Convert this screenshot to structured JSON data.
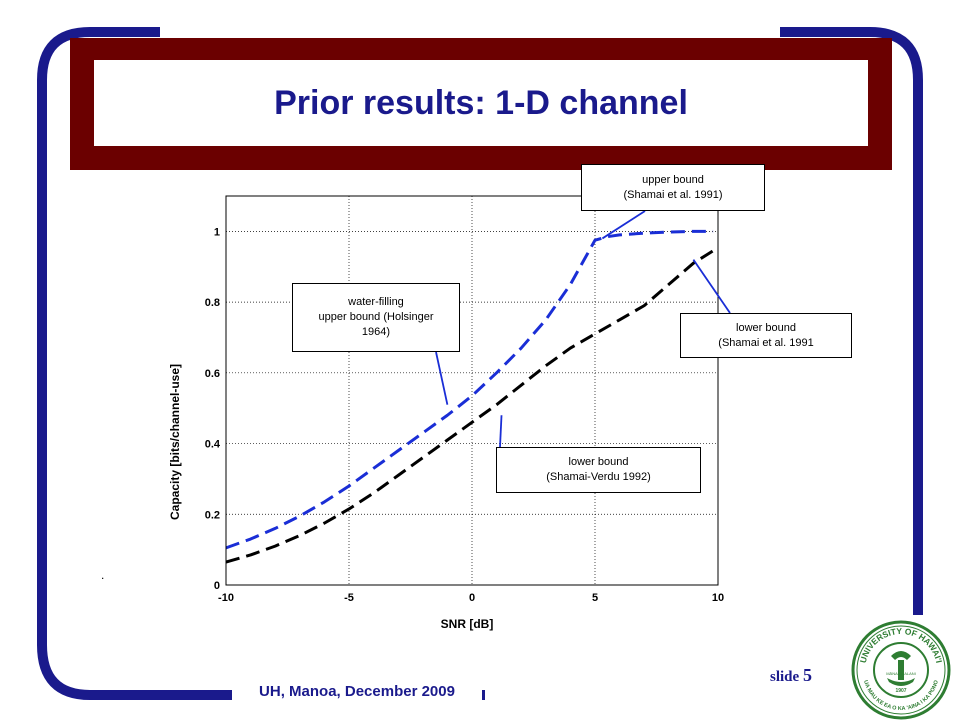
{
  "slide": {
    "title": "Prior results: 1-D channel",
    "footer": "UH, Manoa, December 2009",
    "slide_label": "slide",
    "slide_number": "5",
    "dot": "."
  },
  "logo": {
    "icon": "university-seal-icon",
    "text_top": "UNIVERSITY OF HAWAI'I",
    "text_bottom": "UA MAU KE EA O KA 'AINA I KA PONO",
    "text_center": "MĀNAIAKALANI",
    "year": "1907"
  },
  "colors": {
    "frame": "#1a1a8c",
    "title_border": "#6b0000",
    "blue_series": "#1a2ed6",
    "black_series": "#000000",
    "logo": "#2e7d32"
  },
  "chart_data": {
    "type": "line",
    "title": "",
    "xlabel": "SNR [dB]",
    "ylabel": "Capacity [bits/channel-use]",
    "xlim": [
      -10,
      10
    ],
    "ylim": [
      0,
      1.1
    ],
    "xticks": [
      -10,
      -5,
      0,
      5,
      10
    ],
    "xtick_labels": [
      "-10",
      "-5",
      "0",
      "5",
      "10"
    ],
    "yticks": [
      0,
      0.2,
      0.4,
      0.6,
      0.8,
      1
    ],
    "ytick_labels": [
      "0",
      "0.2",
      "0.4",
      "0.6",
      "0.8",
      "1"
    ],
    "grid": true,
    "series": [
      {
        "color": "#1a2ed6",
        "x": [
          -10,
          -9,
          -8,
          -7,
          -6,
          -5,
          -4,
          -3,
          -2,
          -1,
          0,
          1,
          2,
          3,
          4,
          5,
          5.5,
          6,
          7,
          8,
          9,
          9.8
        ],
        "y": [
          0.105,
          0.13,
          0.16,
          0.195,
          0.235,
          0.28,
          0.33,
          0.38,
          0.43,
          0.48,
          0.535,
          0.6,
          0.67,
          0.75,
          0.85,
          0.975,
          0.985,
          0.99,
          0.995,
          0.998,
          1.0,
          1.0
        ]
      },
      {
        "color": "#000000",
        "x": [
          -10,
          -9,
          -8,
          -7,
          -6,
          -5,
          -4,
          -3,
          -2,
          -1,
          0,
          1,
          2,
          3,
          4,
          5,
          6,
          7,
          8,
          9,
          9.8
        ],
        "y": [
          0.065,
          0.085,
          0.11,
          0.14,
          0.175,
          0.215,
          0.26,
          0.31,
          0.36,
          0.41,
          0.46,
          0.51,
          0.565,
          0.62,
          0.67,
          0.71,
          0.75,
          0.79,
          0.85,
          0.91,
          0.945
        ]
      }
    ],
    "annotations": [
      {
        "id": "upper-bound-shamai",
        "text_line1": "upper bound",
        "text_line2": "(Shamai et al. 1991)",
        "points_to": [
          5.3,
          0.98
        ]
      },
      {
        "id": "water-filling",
        "text_line1": "water-filling",
        "text_line2": "upper bound (Holsinger",
        "text_line3": "1964)",
        "points_to": [
          -1.0,
          0.51
        ]
      },
      {
        "id": "lower-bound-shamai",
        "text_line1": "lower bound",
        "text_line2": "(Shamai et al. 1991",
        "points_to": [
          9.0,
          0.92
        ]
      },
      {
        "id": "lower-bound-shamai-verdu",
        "text_line1": "lower bound",
        "text_line2": "(Shamai-Verdu 1992)",
        "points_to": [
          1.2,
          0.48
        ]
      }
    ]
  }
}
